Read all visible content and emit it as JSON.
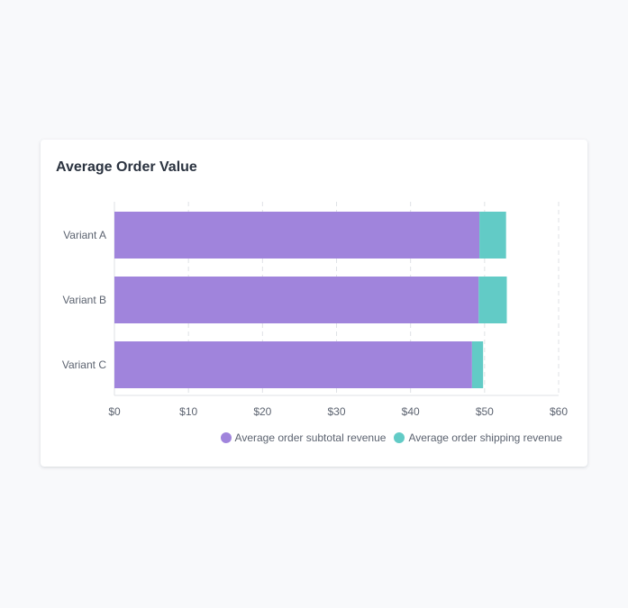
{
  "card": {
    "title": "Average Order Value"
  },
  "colors": {
    "subtotal": "#a084dc",
    "shipping": "#62cbc6",
    "grid": "#dfe2e6",
    "axis_text": "#5c6370"
  },
  "chart_data": {
    "type": "bar",
    "orientation": "horizontal",
    "stacked": true,
    "title": "Average Order Value",
    "categories": [
      "Variant A",
      "Variant B",
      "Variant C"
    ],
    "series": [
      {
        "name": "Average order subtotal revenue",
        "values": [
          49.3,
          49.2,
          48.3
        ],
        "color": "#a084dc"
      },
      {
        "name": "Average order shipping revenue",
        "values": [
          3.6,
          3.8,
          1.5
        ],
        "color": "#62cbc6"
      }
    ],
    "xlim": [
      0,
      60
    ],
    "xticks": [
      0,
      10,
      20,
      30,
      40,
      50,
      60
    ],
    "xtick_labels": [
      "$0",
      "$10",
      "$20",
      "$30",
      "$40",
      "$50",
      "$60"
    ],
    "grid": "vertical dashed",
    "legend_position": "bottom-right"
  }
}
